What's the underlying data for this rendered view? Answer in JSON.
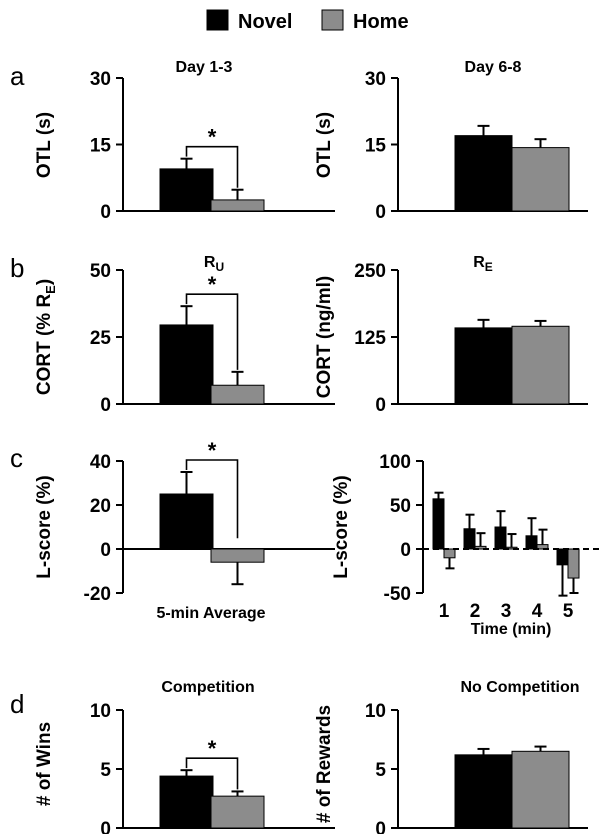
{
  "legend": {
    "items": [
      {
        "label": "Novel",
        "color": "#000000"
      },
      {
        "label": "Home",
        "color": "#8c8c8c"
      }
    ]
  },
  "chart_data": [
    {
      "panel": "a",
      "type": "bar",
      "title": "Day 1-3",
      "ylabel": "OTL (s)",
      "ylim": [
        0,
        30
      ],
      "yticks": [
        0,
        15,
        30
      ],
      "categories": [
        "Novel",
        "Home"
      ],
      "values": [
        9.5,
        2.5
      ],
      "errors": [
        2.3,
        2.3
      ],
      "significance": "*"
    },
    {
      "panel": "a",
      "type": "bar",
      "title": "Day 6-8",
      "ylabel": "OTL (s)",
      "ylim": [
        0,
        30
      ],
      "yticks": [
        0,
        15,
        30
      ],
      "categories": [
        "Novel",
        "Home"
      ],
      "values": [
        17.0,
        14.3
      ],
      "errors": [
        2.2,
        1.9
      ]
    },
    {
      "panel": "b",
      "type": "bar",
      "title": "RU",
      "title_main": "R",
      "title_sub": "U",
      "ylabel": "CORT (% RE)",
      "ylim": [
        0,
        50
      ],
      "yticks": [
        0,
        25,
        50
      ],
      "categories": [
        "Novel",
        "Home"
      ],
      "values": [
        29.5,
        7.0
      ],
      "errors": [
        7.0,
        5.0
      ],
      "significance": "*"
    },
    {
      "panel": "b",
      "type": "bar",
      "title": "RE",
      "title_main": "R",
      "title_sub": "E",
      "ylabel": "CORT (ng/ml)",
      "ylim": [
        0,
        250
      ],
      "yticks": [
        0,
        125,
        250
      ],
      "categories": [
        "Novel",
        "Home"
      ],
      "values": [
        142,
        145
      ],
      "errors": [
        15,
        10
      ]
    },
    {
      "panel": "c",
      "type": "bar",
      "ylabel": "L-score (%)",
      "xlabel": "5-min Average",
      "ylim": [
        -20,
        40
      ],
      "yticks": [
        -20,
        0,
        20,
        40
      ],
      "categories": [
        "Novel",
        "Home"
      ],
      "values": [
        25,
        -6
      ],
      "errors": [
        10,
        10
      ],
      "significance": "*"
    },
    {
      "panel": "c",
      "type": "bar",
      "ylabel": "L-score (%)",
      "xlabel": "Time (min)",
      "ylim": [
        -50,
        100
      ],
      "yticks": [
        -50,
        0,
        50,
        100
      ],
      "categories": [
        "1",
        "2",
        "3",
        "4",
        "5"
      ],
      "series": [
        {
          "name": "Novel",
          "values": [
            57,
            23,
            25,
            15,
            -18
          ],
          "errors": [
            7,
            16,
            18,
            20,
            35
          ]
        },
        {
          "name": "Home",
          "values": [
            -10,
            3,
            2,
            5,
            -33
          ],
          "errors": [
            12,
            15,
            15,
            17,
            17
          ]
        }
      ]
    },
    {
      "panel": "d",
      "type": "bar",
      "title": "Competition",
      "ylabel": "# of Wins",
      "ylim": [
        0,
        10
      ],
      "yticks": [
        0,
        5,
        10
      ],
      "categories": [
        "Novel",
        "Home"
      ],
      "values": [
        4.4,
        2.7
      ],
      "errors": [
        0.5,
        0.4
      ],
      "significance": "*"
    },
    {
      "panel": "d",
      "type": "bar",
      "title": "No Competition",
      "ylabel": "# of Rewards",
      "ylim": [
        0,
        10
      ],
      "yticks": [
        0,
        5,
        10
      ],
      "categories": [
        "Novel",
        "Home"
      ],
      "values": [
        6.2,
        6.5
      ],
      "errors": [
        0.5,
        0.4
      ]
    }
  ]
}
